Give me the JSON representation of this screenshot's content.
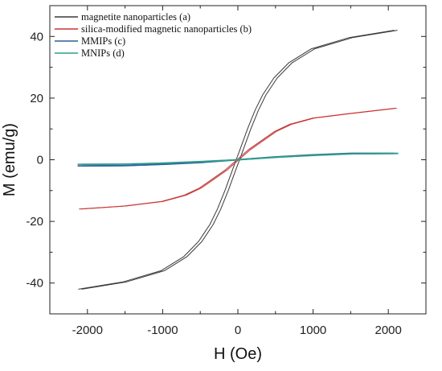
{
  "chart_data": {
    "type": "line",
    "xlabel": "H (Oe)",
    "ylabel": "M (emu/g)",
    "xlim": [
      -2500,
      2500
    ],
    "ylim": [
      -50,
      50
    ],
    "xticks": [
      -2000,
      -1000,
      0,
      1000,
      2000
    ],
    "yticks": [
      -40,
      -20,
      0,
      20,
      40
    ],
    "grid": false,
    "legend_position": "top-left",
    "series": [
      {
        "name": "magnetite nanoparticles (a)",
        "color": "#3a3a3a",
        "x": [
          -2100,
          -1500,
          -1000,
          -700,
          -500,
          -350,
          -250,
          -150,
          -50,
          0,
          50,
          150,
          250,
          350,
          500,
          700,
          1000,
          1500,
          2100
        ],
        "y": [
          -42,
          -39.6,
          -36,
          -31.5,
          -26.5,
          -21,
          -16,
          -10,
          -3.3,
          0,
          3.3,
          10,
          16,
          21,
          26.5,
          31.5,
          36,
          39.6,
          42
        ],
        "hysteresis_offset_oe": 22
      },
      {
        "name": "silica-modified magnetic nanoparticles (b)",
        "color": "#cc3333",
        "x": [
          -2100,
          -1500,
          -1000,
          -700,
          -500,
          -300,
          -150,
          0,
          150,
          300,
          500,
          700,
          1000,
          1500,
          2100
        ],
        "y": [
          -16,
          -15,
          -13.5,
          -11.5,
          -9.2,
          -5.8,
          -3.2,
          0,
          3.2,
          5.8,
          9.2,
          11.5,
          13.5,
          15,
          16.7
        ],
        "hysteresis_offset_oe": 12
      },
      {
        "name": "MMIPs (c)",
        "color": "#2f5f99",
        "x": [
          -2100,
          -1500,
          -1000,
          -500,
          0,
          500,
          1000,
          1500,
          2100
        ],
        "y": [
          -2,
          -1.9,
          -1.5,
          -0.9,
          0,
          0.9,
          1.6,
          2.1,
          2.1
        ],
        "hysteresis_offset_oe": 30
      },
      {
        "name": "MNIPs (d)",
        "color": "#2e9e8c",
        "x": [
          -2100,
          -1500,
          -1000,
          -500,
          0,
          500,
          1000,
          1500,
          2100
        ],
        "y": [
          -1.5,
          -1.4,
          -1.1,
          -0.6,
          0,
          0.8,
          1.4,
          1.9,
          2
        ],
        "hysteresis_offset_oe": 30
      }
    ]
  }
}
